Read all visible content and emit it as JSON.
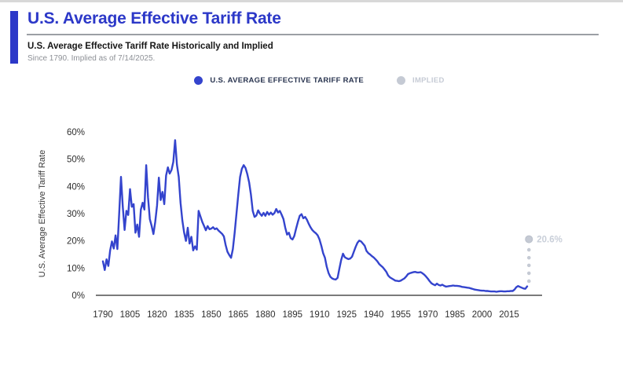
{
  "header": {
    "title": "U.S. Average Effective Tariff Rate",
    "subtitle": "U.S. Average Effective Tariff Rate Historically and Implied",
    "caption": "Since 1790. Implied as of 7/14/2025."
  },
  "legend": {
    "historical_label": "U.S. AVERAGE EFFECTIVE TARIFF RATE",
    "implied_label": "IMPLIED"
  },
  "colors": {
    "accent_blue": "#2c38c8",
    "line_blue": "#3444cd",
    "implied_gray": "#c5cad4",
    "implied_label_gray": "#c9cfd9",
    "axis_gray": "#4f4f4f",
    "divider_gray": "#9b9fa4"
  },
  "chart_data": {
    "type": "line",
    "title": "U.S. Average Effective Tariff Rate Historically and Implied",
    "xlabel": "",
    "ylabel": "U.S. Average Effective Tariff Rate",
    "ylim": [
      0,
      60
    ],
    "xlim": [
      1790,
      2026
    ],
    "grid": false,
    "legend_position": "top-center",
    "ytick_values": [
      0,
      10,
      20,
      30,
      40,
      50,
      60
    ],
    "ytick_suffix": "%",
    "xticks": [
      1790,
      1805,
      1820,
      1835,
      1850,
      1865,
      1880,
      1895,
      1910,
      1925,
      1940,
      1955,
      1970,
      1985,
      2000,
      2015
    ],
    "series": [
      {
        "name": "U.S. AVERAGE EFFECTIVE TARIFF RATE",
        "type": "line",
        "color": "#3444cd",
        "points": [
          [
            1790,
            12.5
          ],
          [
            1791,
            9.3
          ],
          [
            1792,
            13.2
          ],
          [
            1793,
            10.8
          ],
          [
            1794,
            16.5
          ],
          [
            1795,
            19.8
          ],
          [
            1796,
            17.2
          ],
          [
            1797,
            22
          ],
          [
            1798,
            17
          ],
          [
            1799,
            30
          ],
          [
            1800,
            43.5
          ],
          [
            1801,
            32.5
          ],
          [
            1802,
            24
          ],
          [
            1803,
            31
          ],
          [
            1804,
            29.5
          ],
          [
            1805,
            39
          ],
          [
            1806,
            32.5
          ],
          [
            1807,
            33.5
          ],
          [
            1808,
            23
          ],
          [
            1809,
            26
          ],
          [
            1810,
            21.5
          ],
          [
            1811,
            31.5
          ],
          [
            1812,
            34
          ],
          [
            1813,
            31.5
          ],
          [
            1814,
            47.8
          ],
          [
            1815,
            36
          ],
          [
            1816,
            28
          ],
          [
            1817,
            25.5
          ],
          [
            1818,
            22.5
          ],
          [
            1819,
            27
          ],
          [
            1820,
            33
          ],
          [
            1821,
            43.2
          ],
          [
            1822,
            35
          ],
          [
            1823,
            38
          ],
          [
            1824,
            33.5
          ],
          [
            1825,
            44
          ],
          [
            1826,
            47
          ],
          [
            1827,
            44.7
          ],
          [
            1828,
            46
          ],
          [
            1829,
            49
          ],
          [
            1830,
            57
          ],
          [
            1831,
            48
          ],
          [
            1832,
            43.5
          ],
          [
            1833,
            34
          ],
          [
            1834,
            27.5
          ],
          [
            1835,
            23
          ],
          [
            1836,
            20
          ],
          [
            1837,
            24.8
          ],
          [
            1838,
            19
          ],
          [
            1839,
            21.5
          ],
          [
            1840,
            16.5
          ],
          [
            1841,
            18
          ],
          [
            1842,
            16.8
          ],
          [
            1843,
            31
          ],
          [
            1844,
            29
          ],
          [
            1845,
            27
          ],
          [
            1846,
            25.5
          ],
          [
            1847,
            23.9
          ],
          [
            1848,
            25.4
          ],
          [
            1849,
            24.3
          ],
          [
            1850,
            24.5
          ],
          [
            1851,
            25
          ],
          [
            1852,
            24.3
          ],
          [
            1853,
            24.6
          ],
          [
            1854,
            23.8
          ],
          [
            1855,
            23.2
          ],
          [
            1856,
            22.6
          ],
          [
            1857,
            21.6
          ],
          [
            1858,
            18.5
          ],
          [
            1859,
            16
          ],
          [
            1860,
            14.8
          ],
          [
            1861,
            13.8
          ],
          [
            1862,
            17
          ],
          [
            1863,
            23
          ],
          [
            1864,
            30
          ],
          [
            1865,
            37
          ],
          [
            1866,
            43.5
          ],
          [
            1867,
            46.5
          ],
          [
            1868,
            47.8
          ],
          [
            1869,
            46.8
          ],
          [
            1870,
            44.5
          ],
          [
            1871,
            41.5
          ],
          [
            1872,
            37
          ],
          [
            1873,
            31
          ],
          [
            1874,
            28.8
          ],
          [
            1875,
            29.3
          ],
          [
            1876,
            31.2
          ],
          [
            1877,
            30
          ],
          [
            1878,
            29.2
          ],
          [
            1879,
            30.3
          ],
          [
            1880,
            29.2
          ],
          [
            1881,
            30.6
          ],
          [
            1882,
            29.6
          ],
          [
            1883,
            30.4
          ],
          [
            1884,
            29.6
          ],
          [
            1885,
            30.2
          ],
          [
            1886,
            31.7
          ],
          [
            1887,
            30.4
          ],
          [
            1888,
            31
          ],
          [
            1889,
            29.6
          ],
          [
            1890,
            28
          ],
          [
            1891,
            24.8
          ],
          [
            1892,
            22.3
          ],
          [
            1893,
            23
          ],
          [
            1894,
            21
          ],
          [
            1895,
            20.5
          ],
          [
            1896,
            21.8
          ],
          [
            1897,
            24.5
          ],
          [
            1898,
            27
          ],
          [
            1899,
            29.2
          ],
          [
            1900,
            29.8
          ],
          [
            1901,
            28.3
          ],
          [
            1902,
            28.8
          ],
          [
            1903,
            27.8
          ],
          [
            1904,
            26.3
          ],
          [
            1905,
            25
          ],
          [
            1906,
            24
          ],
          [
            1907,
            23.3
          ],
          [
            1908,
            22.8
          ],
          [
            1909,
            22
          ],
          [
            1910,
            20.5
          ],
          [
            1911,
            18.2
          ],
          [
            1912,
            15.5
          ],
          [
            1913,
            13.8
          ],
          [
            1914,
            10.5
          ],
          [
            1915,
            8.2
          ],
          [
            1916,
            6.8
          ],
          [
            1917,
            6.2
          ],
          [
            1918,
            5.9
          ],
          [
            1919,
            5.8
          ],
          [
            1920,
            6.4
          ],
          [
            1921,
            9.8
          ],
          [
            1922,
            13
          ],
          [
            1923,
            15.3
          ],
          [
            1924,
            14
          ],
          [
            1925,
            13.6
          ],
          [
            1926,
            13.3
          ],
          [
            1927,
            13.5
          ],
          [
            1928,
            14.2
          ],
          [
            1929,
            16
          ],
          [
            1930,
            17.8
          ],
          [
            1931,
            19.3
          ],
          [
            1932,
            20.1
          ],
          [
            1933,
            19.8
          ],
          [
            1934,
            19
          ],
          [
            1935,
            18.2
          ],
          [
            1936,
            16.3
          ],
          [
            1937,
            15.5
          ],
          [
            1938,
            15
          ],
          [
            1939,
            14.4
          ],
          [
            1940,
            13.9
          ],
          [
            1941,
            13.2
          ],
          [
            1942,
            12.5
          ],
          [
            1943,
            11.5
          ],
          [
            1944,
            10.9
          ],
          [
            1945,
            10.3
          ],
          [
            1946,
            9.5
          ],
          [
            1947,
            8.6
          ],
          [
            1948,
            7.3
          ],
          [
            1949,
            6.6
          ],
          [
            1950,
            6.2
          ],
          [
            1951,
            5.8
          ],
          [
            1952,
            5.4
          ],
          [
            1953,
            5.3
          ],
          [
            1954,
            5.2
          ],
          [
            1955,
            5.4
          ],
          [
            1956,
            5.8
          ],
          [
            1957,
            6.2
          ],
          [
            1958,
            6.9
          ],
          [
            1959,
            7.8
          ],
          [
            1960,
            8.1
          ],
          [
            1961,
            8.3
          ],
          [
            1962,
            8.5
          ],
          [
            1963,
            8.6
          ],
          [
            1964,
            8.4
          ],
          [
            1965,
            8.4
          ],
          [
            1966,
            8.5
          ],
          [
            1967,
            8.1
          ],
          [
            1968,
            7.6
          ],
          [
            1969,
            6.9
          ],
          [
            1970,
            6.1
          ],
          [
            1971,
            5.2
          ],
          [
            1972,
            4.4
          ],
          [
            1973,
            4
          ],
          [
            1974,
            3.7
          ],
          [
            1975,
            4.3
          ],
          [
            1976,
            3.8
          ],
          [
            1977,
            3.6
          ],
          [
            1978,
            3.9
          ],
          [
            1979,
            3.5
          ],
          [
            1980,
            3.2
          ],
          [
            1981,
            3.3
          ],
          [
            1982,
            3.4
          ],
          [
            1983,
            3.5
          ],
          [
            1984,
            3.6
          ],
          [
            1985,
            3.5
          ],
          [
            1986,
            3.5
          ],
          [
            1987,
            3.4
          ],
          [
            1988,
            3.3
          ],
          [
            1989,
            3.1
          ],
          [
            1990,
            3
          ],
          [
            1991,
            2.9
          ],
          [
            1992,
            2.8
          ],
          [
            1993,
            2.7
          ],
          [
            1994,
            2.5
          ],
          [
            1995,
            2.3
          ],
          [
            1996,
            2.1
          ],
          [
            1997,
            2
          ],
          [
            1998,
            1.9
          ],
          [
            1999,
            1.8
          ],
          [
            2000,
            1.7
          ],
          [
            2001,
            1.7
          ],
          [
            2002,
            1.6
          ],
          [
            2003,
            1.6
          ],
          [
            2004,
            1.5
          ],
          [
            2005,
            1.4
          ],
          [
            2006,
            1.4
          ],
          [
            2007,
            1.4
          ],
          [
            2008,
            1.3
          ],
          [
            2009,
            1.4
          ],
          [
            2010,
            1.5
          ],
          [
            2011,
            1.5
          ],
          [
            2012,
            1.4
          ],
          [
            2013,
            1.4
          ],
          [
            2014,
            1.5
          ],
          [
            2015,
            1.5
          ],
          [
            2016,
            1.6
          ],
          [
            2017,
            1.6
          ],
          [
            2018,
            2.1
          ],
          [
            2019,
            3
          ],
          [
            2020,
            3.4
          ],
          [
            2021,
            3.1
          ],
          [
            2022,
            2.8
          ],
          [
            2023,
            2.5
          ],
          [
            2024,
            2.4
          ],
          [
            2025,
            3.3
          ]
        ]
      },
      {
        "name": "IMPLIED",
        "type": "dotted-projection",
        "color": "#c5cad4",
        "x": 2026,
        "dot_values": [
          5.2,
          8.1,
          11,
          13.8,
          16.7
        ],
        "end_value": 20.6,
        "end_label": "20.6%"
      }
    ]
  }
}
